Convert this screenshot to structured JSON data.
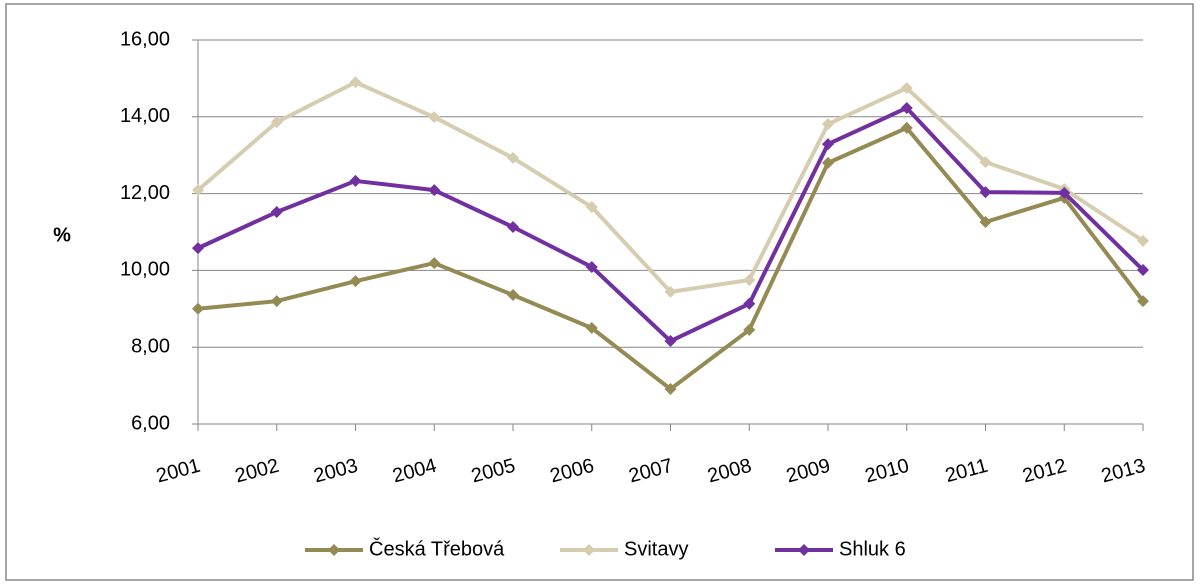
{
  "chart_data": {
    "type": "line",
    "y_label": "%",
    "categories": [
      "2001",
      "2002",
      "2003",
      "2004",
      "2005",
      "2006",
      "2007",
      "2008",
      "2009",
      "2010",
      "2011",
      "2012",
      "2013"
    ],
    "series": [
      {
        "name": "Česká Třebová",
        "color": "#948a54",
        "values": [
          9.0,
          9.2,
          9.72,
          10.19,
          9.36,
          8.5,
          6.91,
          8.45,
          12.8,
          13.71,
          11.26,
          11.89,
          9.2
        ]
      },
      {
        "name": "Svitavy",
        "color": "#d6cdb0",
        "values": [
          12.09,
          13.86,
          14.9,
          13.99,
          12.93,
          11.65,
          9.44,
          9.75,
          13.81,
          14.75,
          12.82,
          12.12,
          10.77
        ]
      },
      {
        "name": "Shluk 6",
        "color": "#7030a0",
        "values": [
          10.58,
          11.52,
          12.33,
          12.09,
          11.13,
          10.09,
          8.16,
          9.13,
          13.29,
          14.23,
          12.04,
          12.02,
          10.01
        ]
      }
    ],
    "ylim": [
      6,
      16
    ],
    "yticks": [
      {
        "value": 6,
        "label": "6,00"
      },
      {
        "value": 8,
        "label": "8,00"
      },
      {
        "value": 10,
        "label": "10,00"
      },
      {
        "value": 12,
        "label": "12,00"
      },
      {
        "value": 14,
        "label": "14,00"
      },
      {
        "value": 16,
        "label": "16,00"
      }
    ],
    "grid": true,
    "legend": "bottom"
  }
}
